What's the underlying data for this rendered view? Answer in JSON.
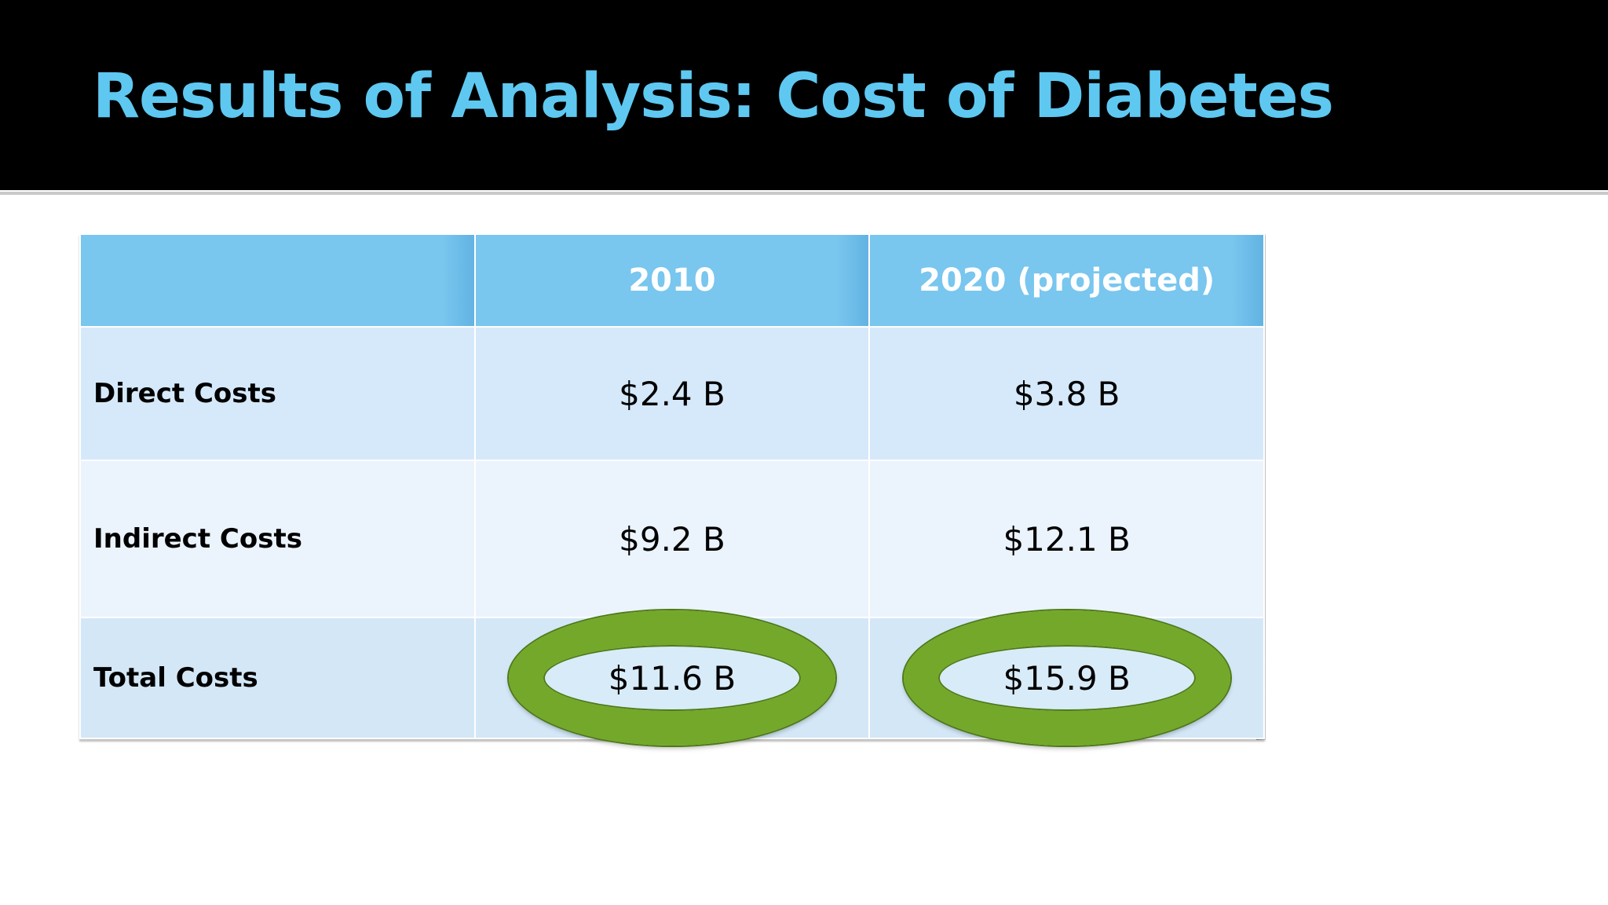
{
  "slide": {
    "title": "Results of Analysis: Cost of Diabetes",
    "colors": {
      "title_text": "#5ec8f1",
      "header_band": "#000000",
      "table_header": "#79c6ef",
      "highlight_ring": "#74a82a"
    }
  },
  "table": {
    "headers": [
      "",
      "2010",
      "2020 (projected)"
    ],
    "rows": [
      {
        "label": "Direct Costs",
        "values": [
          "$2.4 B",
          "$3.8 B"
        ],
        "highlighted": false
      },
      {
        "label": "Indirect Costs",
        "values": [
          "$9.2 B",
          "$12.1 B"
        ],
        "highlighted": false
      },
      {
        "label": "Total Costs",
        "values": [
          "$11.6 B",
          "$15.9 B"
        ],
        "highlighted": true
      }
    ]
  }
}
